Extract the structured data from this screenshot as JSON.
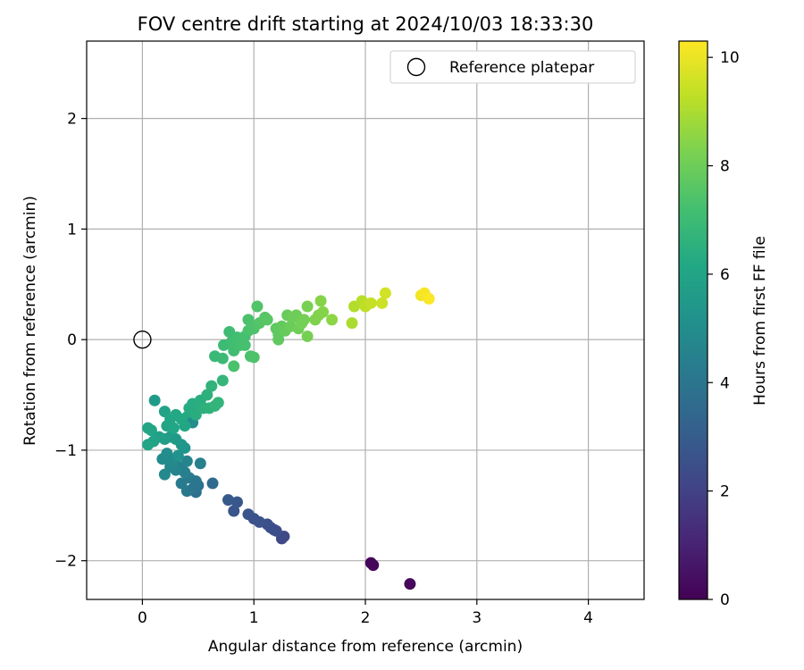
{
  "chart_data": {
    "type": "scatter",
    "title": "FOV centre drift starting at 2024/10/03 18:33:30",
    "xlabel": "Angular distance from reference (arcmin)",
    "ylabel": "Rotation from reference (arcmin)",
    "xlim": [
      -0.5,
      4.5
    ],
    "ylim": [
      -2.35,
      2.7
    ],
    "xticks": [
      0,
      1,
      2,
      3,
      4
    ],
    "yticks": [
      2,
      1,
      0,
      -1,
      -2
    ],
    "xtick_labels": [
      "0",
      "1",
      "2",
      "3",
      "4"
    ],
    "ytick_labels": [
      "2",
      "1",
      "0",
      "−1",
      "−2"
    ],
    "grid": true,
    "legend": {
      "position": "top-right",
      "entries": [
        {
          "label": "Reference platepar",
          "marker": "open-circle"
        }
      ]
    },
    "reference_point": {
      "x": 0,
      "y": 0
    },
    "colorbar": {
      "label": "Hours from first FF file",
      "colormap": "viridis",
      "min": 0,
      "max": 10.3,
      "ticks": [
        0,
        2,
        4,
        6,
        8,
        10
      ]
    },
    "points": [
      {
        "x": 2.05,
        "y": -2.02,
        "h": 0.1
      },
      {
        "x": 2.07,
        "y": -2.04,
        "h": 0.15
      },
      {
        "x": 2.4,
        "y": -2.21,
        "h": 0.2
      },
      {
        "x": 1.27,
        "y": -1.78,
        "h": 2.2
      },
      {
        "x": 1.25,
        "y": -1.8,
        "h": 2.3
      },
      {
        "x": 1.2,
        "y": -1.73,
        "h": 2.4
      },
      {
        "x": 1.15,
        "y": -1.7,
        "h": 2.5
      },
      {
        "x": 1.12,
        "y": -1.67,
        "h": 2.5
      },
      {
        "x": 1.05,
        "y": -1.65,
        "h": 2.6
      },
      {
        "x": 1.0,
        "y": -1.62,
        "h": 2.6
      },
      {
        "x": 0.95,
        "y": -1.58,
        "h": 2.7
      },
      {
        "x": 0.82,
        "y": -1.55,
        "h": 2.7
      },
      {
        "x": 0.85,
        "y": -1.47,
        "h": 2.8
      },
      {
        "x": 0.77,
        "y": -1.45,
        "h": 2.9
      },
      {
        "x": 1.18,
        "y": -1.72,
        "h": 2.45
      },
      {
        "x": 0.63,
        "y": -1.3,
        "h": 3.6
      },
      {
        "x": 0.48,
        "y": -1.38,
        "h": 3.8
      },
      {
        "x": 0.5,
        "y": -1.32,
        "h": 3.9
      },
      {
        "x": 0.45,
        "y": -1.35,
        "h": 4.0
      },
      {
        "x": 0.4,
        "y": -1.37,
        "h": 4.1
      },
      {
        "x": 0.35,
        "y": -1.3,
        "h": 4.2
      },
      {
        "x": 0.42,
        "y": -1.25,
        "h": 4.3
      },
      {
        "x": 0.38,
        "y": -1.2,
        "h": 4.4
      },
      {
        "x": 0.33,
        "y": -1.15,
        "h": 4.5
      },
      {
        "x": 0.3,
        "y": -1.18,
        "h": 4.6
      },
      {
        "x": 0.25,
        "y": -1.15,
        "h": 4.7
      },
      {
        "x": 0.2,
        "y": -1.22,
        "h": 4.8
      },
      {
        "x": 0.18,
        "y": -1.08,
        "h": 4.9
      },
      {
        "x": 0.22,
        "y": -1.03,
        "h": 5.0
      },
      {
        "x": 0.27,
        "y": -1.1,
        "h": 4.9
      },
      {
        "x": 0.52,
        "y": -1.12,
        "h": 4.5
      },
      {
        "x": 0.4,
        "y": -1.1,
        "h": 4.6
      },
      {
        "x": 0.48,
        "y": -1.28,
        "h": 4.0
      },
      {
        "x": 0.32,
        "y": -1.05,
        "h": 5.2
      },
      {
        "x": 0.38,
        "y": -0.98,
        "h": 5.3
      },
      {
        "x": 0.35,
        "y": -0.95,
        "h": 5.4
      },
      {
        "x": 0.3,
        "y": -0.9,
        "h": 5.5
      },
      {
        "x": 0.25,
        "y": -0.88,
        "h": 5.6
      },
      {
        "x": 0.2,
        "y": -0.9,
        "h": 5.7
      },
      {
        "x": 0.15,
        "y": -0.88,
        "h": 5.8
      },
      {
        "x": 0.1,
        "y": -0.92,
        "h": 5.9
      },
      {
        "x": 0.05,
        "y": -0.95,
        "h": 6.0
      },
      {
        "x": 0.05,
        "y": -0.8,
        "h": 6.0
      },
      {
        "x": 0.08,
        "y": -0.82,
        "h": 6.05
      },
      {
        "x": 0.11,
        "y": -0.55,
        "h": 5.6
      },
      {
        "x": 0.2,
        "y": -0.65,
        "h": 5.9
      },
      {
        "x": 0.22,
        "y": -0.78,
        "h": 6.0
      },
      {
        "x": 0.25,
        "y": -0.72,
        "h": 6.1
      },
      {
        "x": 0.28,
        "y": -0.8,
        "h": 6.1
      },
      {
        "x": 0.3,
        "y": -0.68,
        "h": 6.2
      },
      {
        "x": 0.35,
        "y": -0.72,
        "h": 6.2
      },
      {
        "x": 0.4,
        "y": -0.7,
        "h": 6.25
      },
      {
        "x": 0.42,
        "y": -0.62,
        "h": 6.3
      },
      {
        "x": 0.45,
        "y": -0.75,
        "h": 5.0
      },
      {
        "x": 0.45,
        "y": -0.58,
        "h": 6.35
      },
      {
        "x": 0.5,
        "y": -0.6,
        "h": 6.4
      },
      {
        "x": 0.48,
        "y": -0.68,
        "h": 6.4
      },
      {
        "x": 0.52,
        "y": -0.55,
        "h": 6.45
      },
      {
        "x": 0.55,
        "y": -0.62,
        "h": 6.5
      },
      {
        "x": 0.58,
        "y": -0.5,
        "h": 6.55
      },
      {
        "x": 0.6,
        "y": -0.62,
        "h": 6.6
      },
      {
        "x": 0.62,
        "y": -0.42,
        "h": 6.65
      },
      {
        "x": 0.65,
        "y": -0.6,
        "h": 6.7
      },
      {
        "x": 0.68,
        "y": -0.57,
        "h": 6.7
      },
      {
        "x": 0.72,
        "y": -0.37,
        "h": 6.75
      },
      {
        "x": 0.38,
        "y": -0.78,
        "h": 6.15
      },
      {
        "x": 0.65,
        "y": -0.15,
        "h": 6.9
      },
      {
        "x": 0.72,
        "y": -0.17,
        "h": 6.95
      },
      {
        "x": 0.73,
        "y": -0.05,
        "h": 7.0
      },
      {
        "x": 0.78,
        "y": 0.07,
        "h": 7.05
      },
      {
        "x": 0.8,
        "y": -0.02,
        "h": 7.1
      },
      {
        "x": 0.82,
        "y": -0.1,
        "h": 7.1
      },
      {
        "x": 0.82,
        "y": -0.24,
        "h": 7.3
      },
      {
        "x": 0.85,
        "y": 0.02,
        "h": 7.15
      },
      {
        "x": 0.88,
        "y": -0.05,
        "h": 7.2
      },
      {
        "x": 0.9,
        "y": 0.0,
        "h": 7.2
      },
      {
        "x": 0.92,
        "y": 0.03,
        "h": 7.25
      },
      {
        "x": 0.95,
        "y": 0.08,
        "h": 7.3
      },
      {
        "x": 0.95,
        "y": 0.18,
        "h": 7.35
      },
      {
        "x": 0.97,
        "y": -0.15,
        "h": 7.35
      },
      {
        "x": 1.0,
        "y": -0.16,
        "h": 7.4
      },
      {
        "x": 1.0,
        "y": 0.1,
        "h": 7.4
      },
      {
        "x": 1.03,
        "y": 0.3,
        "h": 7.45
      },
      {
        "x": 1.05,
        "y": 0.15,
        "h": 7.5
      },
      {
        "x": 1.1,
        "y": 0.2,
        "h": 7.55
      },
      {
        "x": 1.12,
        "y": 0.18,
        "h": 7.6
      },
      {
        "x": 0.92,
        "y": -0.05,
        "h": 7.25
      },
      {
        "x": 1.2,
        "y": 0.1,
        "h": 7.7
      },
      {
        "x": 1.22,
        "y": 0.0,
        "h": 7.75
      },
      {
        "x": 1.22,
        "y": 0.05,
        "h": 7.75
      },
      {
        "x": 1.25,
        "y": 0.12,
        "h": 7.8
      },
      {
        "x": 1.28,
        "y": 0.08,
        "h": 7.85
      },
      {
        "x": 1.3,
        "y": 0.22,
        "h": 7.9
      },
      {
        "x": 1.33,
        "y": 0.12,
        "h": 7.95
      },
      {
        "x": 1.35,
        "y": 0.2,
        "h": 8.0
      },
      {
        "x": 1.38,
        "y": 0.22,
        "h": 8.0
      },
      {
        "x": 1.4,
        "y": 0.1,
        "h": 8.05
      },
      {
        "x": 1.43,
        "y": 0.15,
        "h": 8.1
      },
      {
        "x": 1.45,
        "y": 0.18,
        "h": 8.1
      },
      {
        "x": 1.48,
        "y": 0.03,
        "h": 8.15
      },
      {
        "x": 1.48,
        "y": 0.3,
        "h": 8.2
      },
      {
        "x": 1.55,
        "y": 0.18,
        "h": 8.3
      },
      {
        "x": 1.58,
        "y": 0.22,
        "h": 8.35
      },
      {
        "x": 1.6,
        "y": 0.35,
        "h": 8.4
      },
      {
        "x": 1.62,
        "y": 0.25,
        "h": 8.4
      },
      {
        "x": 1.7,
        "y": 0.18,
        "h": 8.5
      },
      {
        "x": 1.88,
        "y": 0.15,
        "h": 9.0
      },
      {
        "x": 1.9,
        "y": 0.3,
        "h": 9.1
      },
      {
        "x": 1.97,
        "y": 0.35,
        "h": 9.2
      },
      {
        "x": 2.0,
        "y": 0.3,
        "h": 9.3
      },
      {
        "x": 2.05,
        "y": 0.33,
        "h": 9.4
      },
      {
        "x": 2.15,
        "y": 0.33,
        "h": 9.5
      },
      {
        "x": 2.18,
        "y": 0.42,
        "h": 9.6
      },
      {
        "x": 2.5,
        "y": 0.4,
        "h": 10.1
      },
      {
        "x": 2.53,
        "y": 0.42,
        "h": 10.2
      },
      {
        "x": 2.57,
        "y": 0.37,
        "h": 10.25
      }
    ]
  }
}
